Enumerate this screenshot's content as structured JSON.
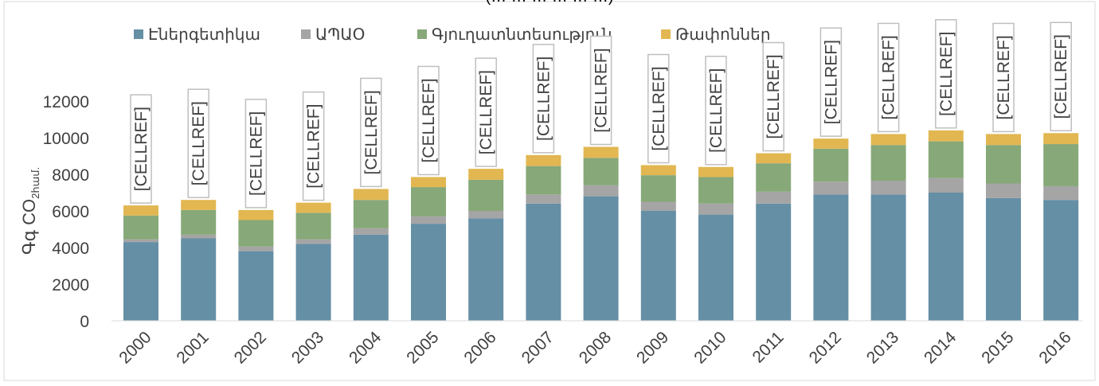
{
  "chart_data": {
    "type": "bar",
    "stacked": true,
    "title": "(… … … … … …)",
    "ylabel": "Գգ CO",
    "ylabel_sub": "2համ.",
    "ylim": [
      0,
      12000
    ],
    "yticks": [
      0,
      2000,
      4000,
      6000,
      8000,
      10000,
      12000
    ],
    "yticks_labels": [
      "0",
      "2000",
      "4000",
      "6000",
      "8000",
      "10000",
      "12000"
    ],
    "categories": [
      "2000",
      "2001",
      "2002",
      "2003",
      "2004",
      "2005",
      "2006",
      "2007",
      "2008",
      "2009",
      "2010",
      "2011",
      "2012",
      "2013",
      "2014",
      "2015",
      "2016"
    ],
    "series": [
      {
        "name": "Էներգետիկա",
        "color": "#658fa5",
        "values": [
          4300,
          4500,
          3800,
          4200,
          4700,
          5300,
          5600,
          6400,
          6800,
          6000,
          5800,
          6400,
          6900,
          6900,
          7000,
          6700,
          6600
        ]
      },
      {
        "name": "ԱՊԱՕ",
        "color": "#a5a5a5",
        "values": [
          150,
          200,
          250,
          250,
          350,
          400,
          400,
          500,
          600,
          500,
          600,
          650,
          700,
          750,
          800,
          800,
          750
        ]
      },
      {
        "name": "Գյուղատնտեսություն",
        "color": "#87a878",
        "values": [
          1300,
          1350,
          1450,
          1450,
          1550,
          1600,
          1700,
          1550,
          1500,
          1450,
          1450,
          1550,
          1800,
          1950,
          2000,
          2100,
          2300
        ]
      },
      {
        "name": "Թափոններ",
        "color": "#e2b751",
        "values": [
          550,
          550,
          550,
          550,
          600,
          550,
          600,
          600,
          600,
          550,
          550,
          550,
          550,
          600,
          600,
          600,
          600
        ]
      }
    ],
    "data_labels": [
      "[CELLREF]",
      "[CELLREF]",
      "[CELLREF]",
      "[CELLREF]",
      "[CELLREF]",
      "[CELLREF]",
      "[CELLREF]",
      "[CELLREF]",
      "[CELLREF]",
      "[CELLREF]",
      "[CELLREF]",
      "[CELLREF]",
      "[CELLREF]",
      "[CELLREF]",
      "[CELLREF]",
      "[CELLREF]",
      "[CELLREF]"
    ],
    "legend_position": "top",
    "grid": false
  }
}
